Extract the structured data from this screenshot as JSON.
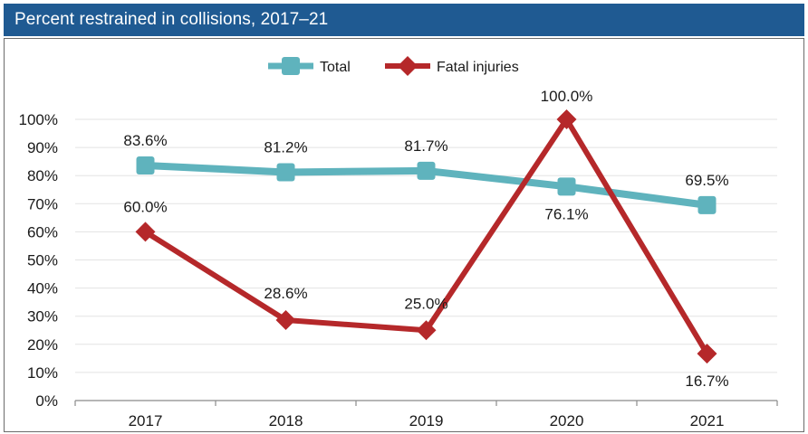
{
  "title": "Percent restrained in collisions, 2017–21",
  "chart_data": {
    "type": "line",
    "title": "Percent restrained in collisions, 2017–21",
    "categories": [
      "2017",
      "2018",
      "2019",
      "2020",
      "2021"
    ],
    "series": [
      {
        "name": "Total",
        "values": [
          83.6,
          81.2,
          81.7,
          76.1,
          69.5
        ],
        "labels": [
          "83.6%",
          "81.2%",
          "81.7%",
          "76.1%",
          "69.5%"
        ],
        "color": "#5fb3bd",
        "marker": "square"
      },
      {
        "name": "Fatal injuries",
        "values": [
          60.0,
          28.6,
          25.0,
          100.0,
          16.7
        ],
        "labels": [
          "60.0%",
          "28.6%",
          "25.0%",
          "100.0%",
          "16.7%"
        ],
        "color": "#b5282a",
        "marker": "diamond"
      }
    ],
    "y_ticks": [
      "0%",
      "10%",
      "20%",
      "30%",
      "40%",
      "50%",
      "60%",
      "70%",
      "80%",
      "90%",
      "100%"
    ],
    "ylim": [
      0,
      100
    ],
    "xlabel": "",
    "ylabel": "",
    "grid": true,
    "legend_position": "top-center"
  }
}
